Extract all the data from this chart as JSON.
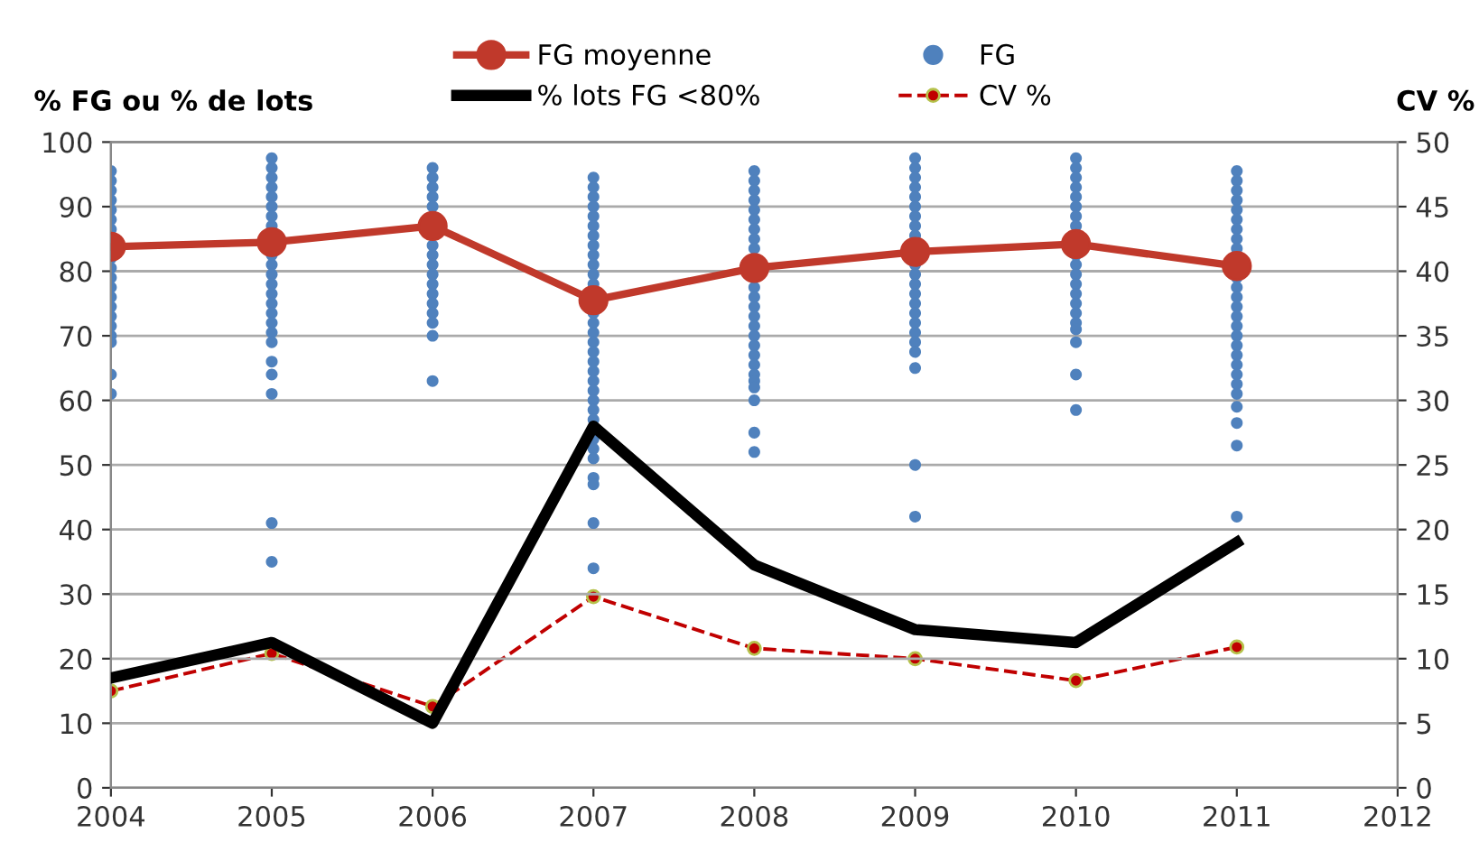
{
  "chart_data": {
    "type": "line",
    "ylabel": "% FG ou % de lots",
    "y2label": "CV %",
    "xlim": [
      2004,
      2012
    ],
    "xticks": [
      2004,
      2005,
      2006,
      2007,
      2008,
      2009,
      2010,
      2011,
      2012
    ],
    "ylim": [
      0,
      100
    ],
    "yticks": [
      0,
      10,
      20,
      30,
      40,
      50,
      60,
      70,
      80,
      90,
      100
    ],
    "y2lim": [
      0,
      50
    ],
    "y2ticks": [
      0,
      5,
      10,
      15,
      20,
      25,
      30,
      35,
      40,
      45,
      50
    ],
    "grid": "y",
    "legend": "top",
    "series": [
      {
        "name": "FG moyenne",
        "color": "#c0392b",
        "marker": "circle",
        "line_style": "solid",
        "x": [
          2004,
          2005,
          2006,
          2007,
          2008,
          2009,
          2010,
          2011
        ],
        "values": [
          83.8,
          84.5,
          87,
          75.5,
          80.5,
          83,
          84.2,
          80.8
        ]
      },
      {
        "name": "FG",
        "type": "scatter",
        "color": "#4f81bd",
        "marker": "circle",
        "x": [
          2004,
          2004,
          2004,
          2004,
          2004,
          2004,
          2004,
          2004,
          2004,
          2004,
          2004,
          2004,
          2004,
          2004,
          2004,
          2004,
          2004,
          2004,
          2004,
          2005,
          2005,
          2005,
          2005,
          2005,
          2005,
          2005,
          2005,
          2005,
          2005,
          2005,
          2005,
          2005,
          2005,
          2005,
          2005,
          2005,
          2005,
          2005,
          2005,
          2005,
          2005,
          2005,
          2006,
          2006,
          2006,
          2006,
          2006,
          2006,
          2006,
          2006,
          2006,
          2006,
          2006,
          2006,
          2006,
          2006,
          2006,
          2006,
          2007,
          2007,
          2007,
          2007,
          2007,
          2007,
          2007,
          2007,
          2007,
          2007,
          2007,
          2007,
          2007,
          2007,
          2007,
          2007,
          2007,
          2007,
          2007,
          2007,
          2007,
          2007,
          2007,
          2007,
          2007,
          2007,
          2007,
          2007,
          2007,
          2007,
          2007,
          2008,
          2008,
          2008,
          2008,
          2008,
          2008,
          2008,
          2008,
          2008,
          2008,
          2008,
          2008,
          2008,
          2008,
          2008,
          2008,
          2008,
          2008,
          2008,
          2008,
          2008,
          2008,
          2008,
          2008,
          2009,
          2009,
          2009,
          2009,
          2009,
          2009,
          2009,
          2009,
          2009,
          2009,
          2009,
          2009,
          2009,
          2009,
          2009,
          2009,
          2009,
          2009,
          2009,
          2009,
          2009,
          2009,
          2010,
          2010,
          2010,
          2010,
          2010,
          2010,
          2010,
          2010,
          2010,
          2010,
          2010,
          2010,
          2010,
          2010,
          2010,
          2010,
          2010,
          2010,
          2010,
          2010,
          2011,
          2011,
          2011,
          2011,
          2011,
          2011,
          2011,
          2011,
          2011,
          2011,
          2011,
          2011,
          2011,
          2011,
          2011,
          2011,
          2011,
          2011,
          2011,
          2011,
          2011,
          2011,
          2011,
          2011,
          2011,
          2011
        ],
        "values": [
          95.5,
          94,
          92.5,
          91,
          89.5,
          88,
          86.5,
          82,
          80.5,
          79,
          77.5,
          76,
          74.5,
          73,
          71.5,
          70,
          69,
          64,
          61,
          97.5,
          96,
          94.5,
          93,
          91.5,
          90,
          88.5,
          87,
          82.5,
          81,
          79.5,
          78,
          76.5,
          75,
          73.5,
          72,
          70.5,
          69,
          66,
          64,
          61,
          41,
          35,
          96,
          94.5,
          93,
          91.5,
          90,
          84,
          82.5,
          81,
          79.5,
          78,
          76.5,
          75,
          73.5,
          72,
          70,
          63,
          94.5,
          93,
          91.5,
          90,
          88.5,
          87,
          85.5,
          84,
          82.5,
          81,
          79.5,
          78,
          73.5,
          72,
          70.5,
          69,
          67.5,
          66,
          64.5,
          63,
          61.5,
          60,
          58.5,
          57,
          54,
          52.5,
          51,
          48,
          47,
          41,
          34,
          95.5,
          94,
          92.5,
          91,
          89.5,
          88,
          86.5,
          85,
          83.5,
          77.5,
          76,
          74.5,
          73,
          71.5,
          70,
          68.5,
          67,
          65.5,
          64,
          63,
          62,
          60,
          55,
          52,
          97.5,
          96,
          94.5,
          93,
          91.5,
          90,
          88.5,
          87,
          85.5,
          81,
          79.5,
          78,
          76.5,
          75,
          73.5,
          72,
          70.5,
          69,
          67.5,
          65,
          50,
          42,
          97.5,
          96,
          94.5,
          93,
          91.5,
          90,
          88.5,
          87,
          82.5,
          81,
          79.5,
          78,
          76.5,
          75,
          73.5,
          72,
          71,
          69,
          64,
          58.5,
          95.5,
          94,
          92.5,
          91,
          89.5,
          88,
          86.5,
          85,
          83.5,
          79,
          77.5,
          76,
          74.5,
          73,
          71.5,
          70,
          68.5,
          67,
          65.5,
          64,
          62.5,
          61,
          59,
          56.5,
          53,
          42
        ]
      },
      {
        "name": "% lots FG <80%",
        "color": "#000000",
        "marker": "none",
        "line_style": "solid",
        "x": [
          2004,
          2005,
          2006,
          2007,
          2008,
          2009,
          2010,
          2011
        ],
        "values": [
          17,
          22.5,
          10,
          56,
          34.5,
          24.5,
          22.5,
          38
        ]
      },
      {
        "name": "CV %",
        "axis": "y2",
        "color": "#c00000",
        "marker": "circle",
        "line_style": "dashed",
        "x": [
          2004,
          2005,
          2006,
          2007,
          2008,
          2009,
          2010,
          2011
        ],
        "values": [
          7.5,
          10.4,
          6.3,
          14.8,
          10.8,
          10,
          8.3,
          10.9
        ]
      }
    ]
  }
}
